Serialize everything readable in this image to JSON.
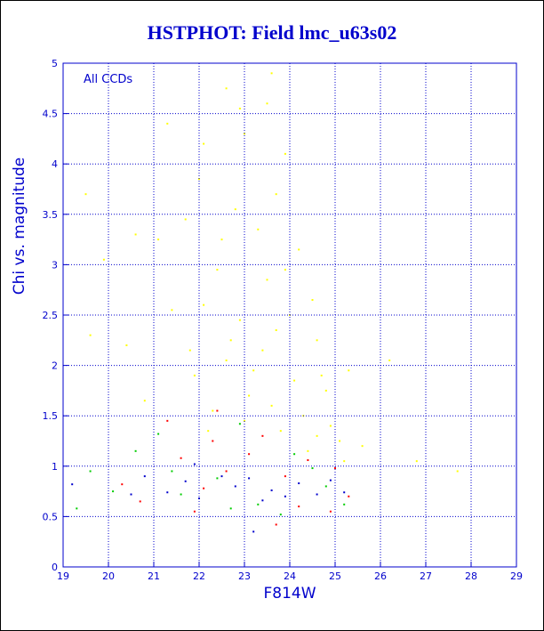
{
  "chart_data": {
    "type": "scatter",
    "title": "HSTPHOT: Field lmc_u63s02",
    "xlabel": "F814W",
    "ylabel": "Chi vs. magnitude",
    "annotation": "All CCDs",
    "xlim": [
      19,
      29
    ],
    "ylim": [
      0,
      5
    ],
    "x_ticks": [
      19,
      20,
      21,
      22,
      23,
      24,
      25,
      26,
      27,
      28,
      29
    ],
    "y_ticks": [
      0,
      0.5,
      1,
      1.5,
      2,
      2.5,
      3,
      3.5,
      4,
      4.5,
      5
    ],
    "grid": true,
    "series": [
      {
        "color": "#ffff00",
        "points": [
          [
            22.6,
            4.75
          ],
          [
            23.6,
            4.9
          ],
          [
            22.9,
            4.55
          ],
          [
            23.5,
            4.6
          ],
          [
            22.1,
            4.2
          ],
          [
            23.0,
            4.3
          ],
          [
            23.9,
            4.1
          ],
          [
            22.0,
            3.85
          ],
          [
            23.7,
            3.7
          ],
          [
            22.8,
            3.55
          ],
          [
            21.7,
            3.45
          ],
          [
            23.3,
            3.35
          ],
          [
            24.2,
            3.15
          ],
          [
            21.1,
            3.25
          ],
          [
            20.6,
            3.3
          ],
          [
            19.9,
            3.05
          ],
          [
            22.4,
            2.95
          ],
          [
            23.5,
            2.85
          ],
          [
            24.5,
            2.65
          ],
          [
            22.1,
            2.6
          ],
          [
            21.4,
            2.55
          ],
          [
            22.9,
            2.45
          ],
          [
            23.7,
            2.35
          ],
          [
            24.6,
            2.25
          ],
          [
            21.8,
            2.15
          ],
          [
            22.6,
            2.05
          ],
          [
            23.2,
            1.95
          ],
          [
            24.1,
            1.85
          ],
          [
            24.8,
            1.75
          ],
          [
            25.3,
            1.95
          ],
          [
            26.2,
            2.05
          ],
          [
            19.6,
            2.3
          ],
          [
            20.8,
            1.65
          ],
          [
            22.3,
            1.55
          ],
          [
            23.0,
            1.45
          ],
          [
            24.3,
            1.5
          ],
          [
            24.9,
            1.4
          ],
          [
            25.1,
            1.25
          ],
          [
            24.6,
            1.3
          ],
          [
            23.8,
            1.35
          ],
          [
            25.6,
            1.2
          ],
          [
            26.8,
            1.05
          ],
          [
            27.7,
            0.95
          ],
          [
            19.5,
            3.7
          ],
          [
            21.3,
            4.4
          ],
          [
            23.4,
            2.15
          ],
          [
            24.0,
            2.5
          ],
          [
            22.7,
            2.25
          ],
          [
            23.1,
            1.7
          ],
          [
            24.4,
            1.15
          ],
          [
            25.2,
            1.05
          ],
          [
            22.5,
            3.25
          ],
          [
            23.9,
            2.95
          ],
          [
            20.4,
            2.2
          ],
          [
            21.9,
            1.9
          ],
          [
            24.7,
            1.9
          ],
          [
            23.6,
            1.6
          ],
          [
            22.2,
            1.35
          ]
        ]
      },
      {
        "color": "#ff0000",
        "points": [
          [
            21.3,
            1.45
          ],
          [
            22.3,
            1.25
          ],
          [
            23.1,
            1.12
          ],
          [
            24.4,
            1.06
          ],
          [
            25.0,
            0.98
          ],
          [
            20.3,
            0.82
          ],
          [
            22.6,
            0.95
          ],
          [
            21.6,
            1.08
          ],
          [
            24.9,
            0.55
          ],
          [
            23.7,
            0.42
          ],
          [
            22.4,
            1.55
          ],
          [
            24.2,
            0.6
          ],
          [
            20.7,
            0.65
          ],
          [
            23.4,
            1.3
          ],
          [
            25.3,
            0.7
          ],
          [
            21.9,
            0.55
          ],
          [
            23.9,
            0.9
          ],
          [
            22.1,
            0.78
          ]
        ]
      },
      {
        "color": "#00cc00",
        "points": [
          [
            19.6,
            0.95
          ],
          [
            20.6,
            1.15
          ],
          [
            21.6,
            0.72
          ],
          [
            22.4,
            0.88
          ],
          [
            23.3,
            0.62
          ],
          [
            24.1,
            1.12
          ],
          [
            24.8,
            0.8
          ],
          [
            21.1,
            1.32
          ],
          [
            19.3,
            0.58
          ],
          [
            25.2,
            0.62
          ],
          [
            22.9,
            1.42
          ],
          [
            20.1,
            0.75
          ],
          [
            23.8,
            0.52
          ],
          [
            21.4,
            0.95
          ],
          [
            24.5,
            0.98
          ],
          [
            22.7,
            0.58
          ]
        ]
      },
      {
        "color": "#0000cc",
        "points": [
          [
            21.7,
            0.85
          ],
          [
            22.8,
            0.8
          ],
          [
            23.6,
            0.76
          ],
          [
            24.6,
            0.72
          ],
          [
            20.8,
            0.9
          ],
          [
            22.0,
            0.68
          ],
          [
            23.1,
            0.88
          ],
          [
            24.2,
            0.83
          ],
          [
            25.2,
            0.74
          ],
          [
            21.3,
            0.74
          ],
          [
            23.9,
            0.7
          ],
          [
            22.5,
            0.9
          ],
          [
            23.4,
            0.66
          ],
          [
            24.9,
            0.86
          ],
          [
            20.5,
            0.72
          ],
          [
            21.9,
            1.02
          ],
          [
            19.2,
            0.82
          ],
          [
            23.2,
            0.35
          ]
        ]
      }
    ]
  }
}
